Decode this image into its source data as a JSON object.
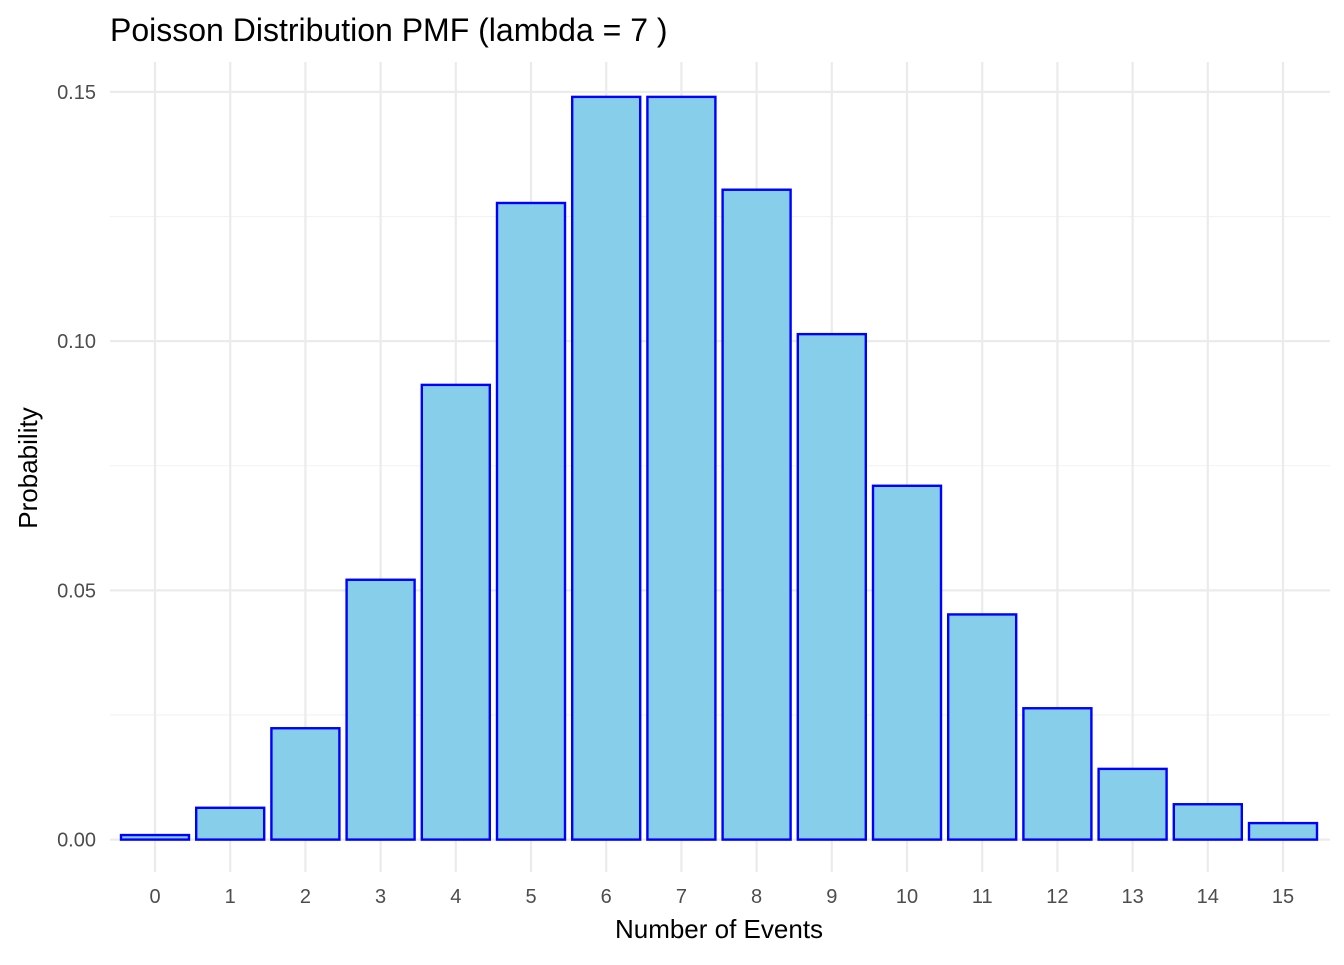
{
  "chart_data": {
    "type": "bar",
    "title": "Poisson Distribution PMF (lambda = 7 )",
    "xlabel": "Number of Events",
    "ylabel": "Probability",
    "categories": [
      "0",
      "1",
      "2",
      "3",
      "4",
      "5",
      "6",
      "7",
      "8",
      "9",
      "10",
      "11",
      "12",
      "13",
      "14",
      "15"
    ],
    "values": [
      0.000912,
      0.006383,
      0.022341,
      0.052129,
      0.091226,
      0.127717,
      0.149003,
      0.149003,
      0.130377,
      0.101405,
      0.070983,
      0.045171,
      0.02635,
      0.014188,
      0.007094,
      0.003311
    ],
    "ylim": [
      -0.0065,
      0.156
    ],
    "yticks": [
      0,
      0.05,
      0.1,
      0.15
    ],
    "ytick_labels": [
      "0.00",
      "0.05",
      "0.10",
      "0.15"
    ],
    "grid": true,
    "legend": false,
    "colors": {
      "bar_fill": "#87ceeb",
      "bar_stroke": "#0000ff"
    }
  }
}
